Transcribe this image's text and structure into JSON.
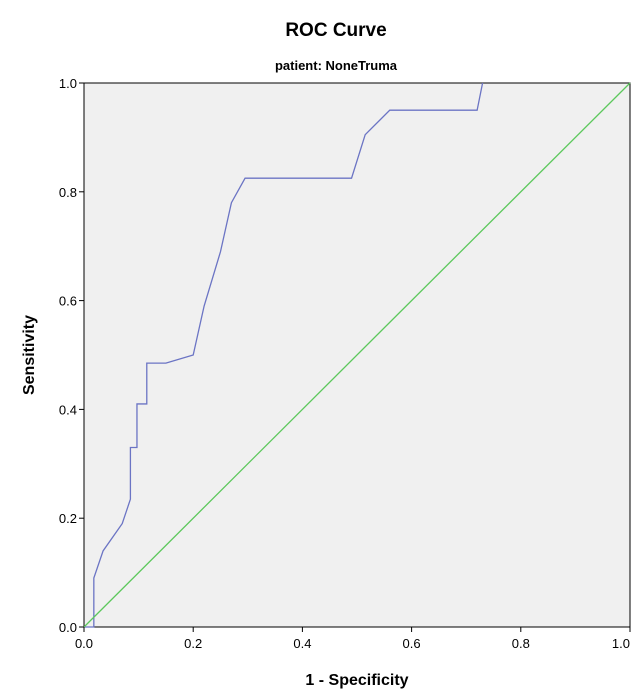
{
  "chart_data": {
    "type": "line",
    "title": "ROC Curve",
    "subtitle": "patient: NoneTruma",
    "xlabel": "1 - Specificity",
    "ylabel": "Sensitivity",
    "xlim": [
      0.0,
      1.0
    ],
    "ylim": [
      0.0,
      1.0
    ],
    "xticks": [
      "0.0",
      "0.2",
      "0.4",
      "0.6",
      "0.8",
      "1.0"
    ],
    "yticks": [
      "0.0",
      "0.2",
      "0.4",
      "0.6",
      "0.8",
      "1.0"
    ],
    "grid": false,
    "plot_background": "#f0f0f0",
    "series": [
      {
        "color": "#6b74c4",
        "x": [
          0.0,
          0.018,
          0.018,
          0.035,
          0.07,
          0.085,
          0.085,
          0.097,
          0.097,
          0.115,
          0.115,
          0.15,
          0.2,
          0.22,
          0.25,
          0.27,
          0.295,
          0.34,
          0.49,
          0.515,
          0.56,
          0.72,
          0.73
        ],
        "y": [
          0.0,
          0.0,
          0.09,
          0.14,
          0.19,
          0.235,
          0.33,
          0.33,
          0.41,
          0.41,
          0.485,
          0.485,
          0.5,
          0.59,
          0.69,
          0.78,
          0.825,
          0.825,
          0.825,
          0.905,
          0.95,
          0.95,
          1.0
        ]
      },
      {
        "color": "#5cc85c",
        "x": [
          0.0,
          1.0
        ],
        "y": [
          0.0,
          1.0
        ]
      }
    ]
  }
}
